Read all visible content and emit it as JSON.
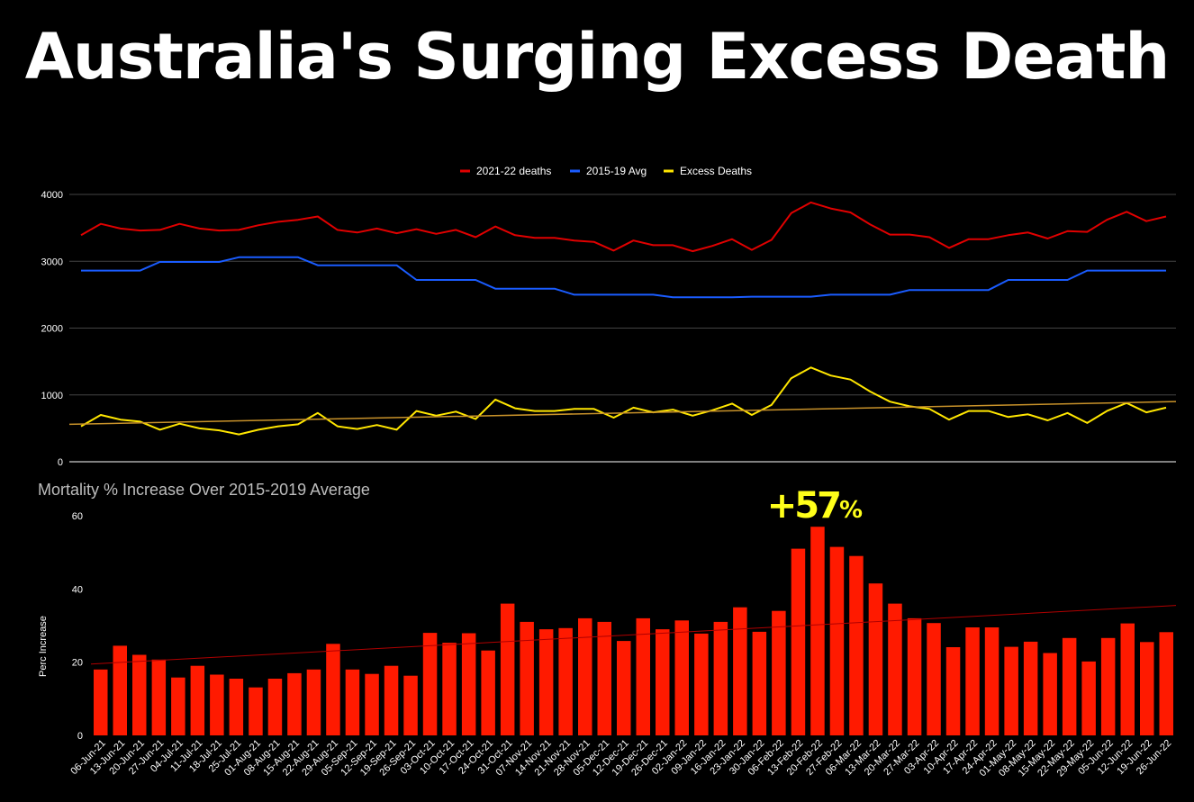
{
  "title": "Australia's Surging Excess Death",
  "chart_data": [
    {
      "type": "line",
      "legend": {
        "placement": "top-center"
      },
      "x": [
        "06-Jun-21",
        "13-Jun-21",
        "20-Jun-21",
        "27-Jun-21",
        "04-Jul-21",
        "11-Jul-21",
        "18-Jul-21",
        "25-Jul-21",
        "01-Aug-21",
        "08-Aug-21",
        "15-Aug-21",
        "22-Aug-21",
        "29-Aug-21",
        "05-Sep-21",
        "12-Sep-21",
        "19-Sep-21",
        "26-Sep-21",
        "03-Oct-21",
        "10-Oct-21",
        "17-Oct-21",
        "24-Oct-21",
        "31-Oct-21",
        "07-Nov-21",
        "14-Nov-21",
        "21-Nov-21",
        "28-Nov-21",
        "05-Dec-21",
        "12-Dec-21",
        "19-Dec-21",
        "26-Dec-21",
        "02-Jan-22",
        "09-Jan-22",
        "16-Jan-22",
        "23-Jan-22",
        "30-Jan-22",
        "06-Feb-22",
        "13-Feb-22",
        "20-Feb-22",
        "27-Feb-22",
        "06-Mar-22",
        "13-Mar-22",
        "20-Mar-22",
        "27-Mar-22",
        "03-Apr-22",
        "10-Apr-22",
        "17-Apr-22",
        "24-Apr-22",
        "01-May-22",
        "08-May-22",
        "15-May-22",
        "22-May-22",
        "29-May-22",
        "05-Jun-22",
        "12-Jun-22",
        "19-Jun-22",
        "26-Jun-22"
      ],
      "ylim": [
        0,
        4000
      ],
      "yticks": [
        0,
        1000,
        2000,
        3000,
        4000
      ],
      "grid": true,
      "series": [
        {
          "name": "2021-22 deaths",
          "color": "#e00000",
          "values": [
            3390,
            3560,
            3490,
            3460,
            3470,
            3560,
            3490,
            3460,
            3470,
            3540,
            3590,
            3620,
            3670,
            3470,
            3430,
            3490,
            3420,
            3480,
            3410,
            3470,
            3360,
            3520,
            3390,
            3350,
            3350,
            3310,
            3290,
            3160,
            3310,
            3240,
            3240,
            3150,
            3230,
            3330,
            3170,
            3320,
            3720,
            3880,
            3790,
            3730,
            3550,
            3400,
            3400,
            3360,
            3200,
            3330,
            3330,
            3390,
            3430,
            3340,
            3450,
            3440,
            3620,
            3740,
            3600,
            3670
          ]
        },
        {
          "name": "2015-19 Avg",
          "color": "#1a5cff",
          "values": [
            2860,
            2860,
            2860,
            2860,
            2990,
            2990,
            2990,
            2990,
            3060,
            3060,
            3060,
            3060,
            2940,
            2940,
            2940,
            2940,
            2940,
            2720,
            2720,
            2720,
            2720,
            2590,
            2590,
            2590,
            2590,
            2500,
            2500,
            2500,
            2500,
            2500,
            2460,
            2460,
            2460,
            2460,
            2470,
            2470,
            2470,
            2470,
            2500,
            2500,
            2500,
            2500,
            2570,
            2570,
            2570,
            2570,
            2570,
            2720,
            2720,
            2720,
            2720,
            2860,
            2860,
            2860,
            2860,
            2860
          ]
        },
        {
          "name": "Excess Deaths",
          "color": "#ffe600",
          "values": [
            530,
            700,
            630,
            600,
            480,
            570,
            500,
            470,
            410,
            480,
            530,
            560,
            730,
            530,
            490,
            550,
            480,
            760,
            690,
            750,
            640,
            930,
            800,
            760,
            760,
            790,
            790,
            660,
            810,
            740,
            780,
            690,
            770,
            870,
            700,
            850,
            1250,
            1410,
            1290,
            1230,
            1050,
            900,
            830,
            790,
            630,
            760,
            760,
            670,
            710,
            620,
            730,
            580,
            760,
            880,
            740,
            810
          ]
        }
      ],
      "trendline": {
        "series": "Excess Deaths",
        "color": "#c8922a",
        "start": 560,
        "end": 900
      }
    },
    {
      "type": "bar",
      "title": "Mortality % Increase Over 2015-2019 Average",
      "ylabel": "Perc Increase",
      "ylim": [
        0,
        60
      ],
      "yticks": [
        0,
        20,
        40,
        60
      ],
      "categories": [
        "06-Jun-21",
        "13-Jun-21",
        "20-Jun-21",
        "27-Jun-21",
        "04-Jul-21",
        "11-Jul-21",
        "18-Jul-21",
        "25-Jul-21",
        "01-Aug-21",
        "08-Aug-21",
        "15-Aug-21",
        "22-Aug-21",
        "29-Aug-21",
        "05-Sep-21",
        "12-Sep-21",
        "19-Sep-21",
        "26-Sep-21",
        "03-Oct-21",
        "10-Oct-21",
        "17-Oct-21",
        "24-Oct-21",
        "31-Oct-21",
        "07-Nov-21",
        "14-Nov-21",
        "21-Nov-21",
        "28-Nov-21",
        "05-Dec-21",
        "12-Dec-21",
        "19-Dec-21",
        "26-Dec-21",
        "02-Jan-22",
        "09-Jan-22",
        "16-Jan-22",
        "23-Jan-22",
        "30-Jan-22",
        "06-Feb-22",
        "13-Feb-22",
        "20-Feb-22",
        "27-Feb-22",
        "06-Mar-22",
        "13-Mar-22",
        "20-Mar-22",
        "27-Mar-22",
        "03-Apr-22",
        "10-Apr-22",
        "17-Apr-22",
        "24-Apr-22",
        "01-May-22",
        "08-May-22",
        "15-May-22",
        "22-May-22",
        "29-May-22",
        "05-Jun-22",
        "12-Jun-22",
        "19-Jun-22",
        "26-Jun-22"
      ],
      "values": [
        18,
        24.5,
        22,
        20.7,
        15.8,
        19,
        16.6,
        15.5,
        13.1,
        15.5,
        17,
        18,
        25,
        18,
        16.8,
        19,
        16.3,
        28,
        25.3,
        27.9,
        23.2,
        36,
        31,
        29,
        29.3,
        32,
        31,
        25.8,
        32,
        29,
        31.4,
        27.8,
        31,
        35,
        28.3,
        34,
        51,
        57,
        51.5,
        49,
        41.5,
        36,
        32,
        30.7,
        24.1,
        29.5,
        29.5,
        24.2,
        25.6,
        22.5,
        26.6,
        20.2,
        26.6,
        30.6,
        25.5,
        28.2
      ],
      "bar_color": "#ff1a00",
      "trendline": {
        "color": "#b00000",
        "start": 19.5,
        "end": 35.5
      },
      "annotation": {
        "big": "+57",
        "small": "%",
        "category": "20-Feb-22",
        "color": "#ffff1a"
      }
    }
  ]
}
